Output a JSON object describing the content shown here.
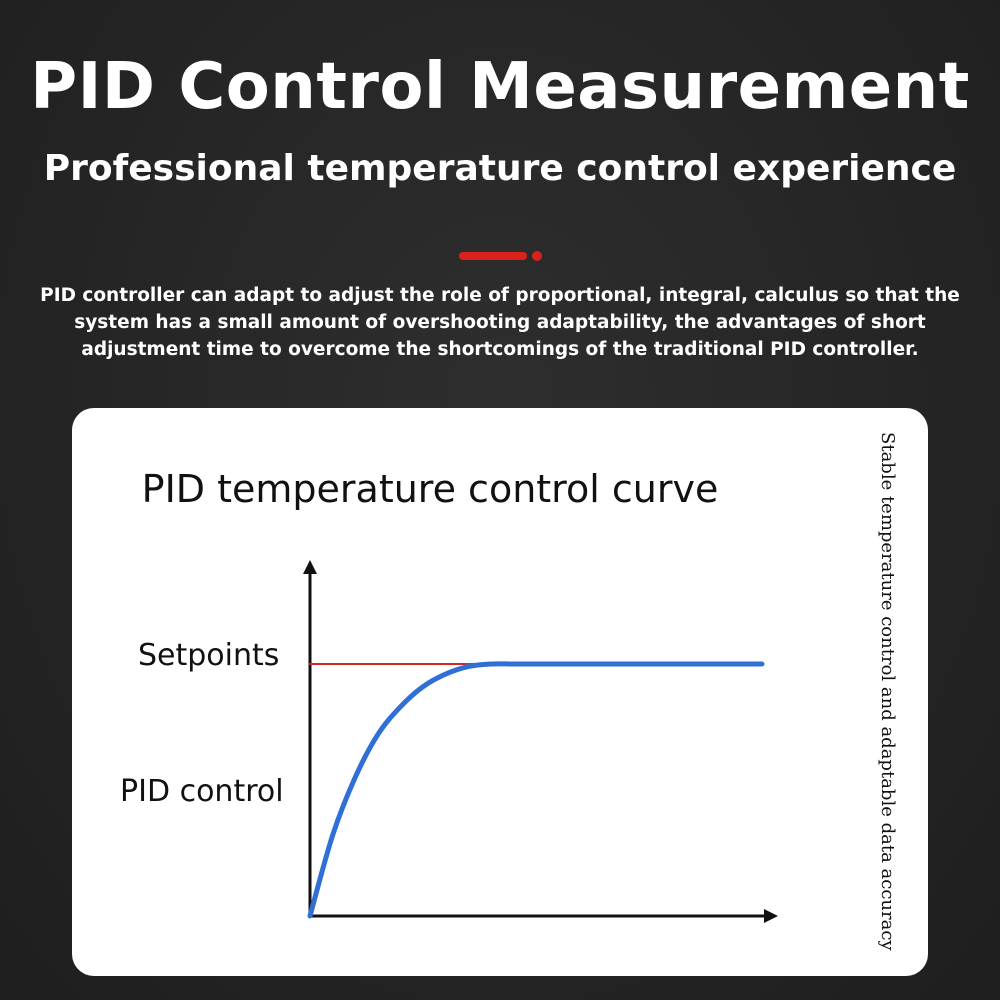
{
  "header": {
    "title": "PID Control Measurement",
    "subtitle": "Professional temperature control experience",
    "accent_color": "#d9221c"
  },
  "intro": {
    "text": "PID controller can adapt to adjust the role of proportional, integral, calculus so that the system has a small amount of overshooting adaptability, the advantages of short adjustment time to overcome the shortcomings of the traditional PID controller."
  },
  "card": {
    "chart_title": "PID temperature control curve",
    "side_caption": "Stable temperature control and adaptable data accuracy",
    "labels": {
      "setpoints": "Setpoints",
      "pid_control": "PID control"
    }
  },
  "chart_data": {
    "type": "line",
    "title": "PID temperature control curve",
    "xlabel": "",
    "ylabel": "",
    "grid": false,
    "setpoint_color": "#d42828",
    "pid_color": "#2f6fd6",
    "series": [
      {
        "name": "Setpoints",
        "color": "#d42828",
        "x": [
          0,
          1
        ],
        "y": [
          1,
          1
        ]
      },
      {
        "name": "PID control",
        "color": "#2f6fd6",
        "x": [
          0,
          0.05,
          0.1,
          0.15,
          0.2,
          0.25,
          0.3,
          0.35,
          0.4,
          0.45,
          0.5,
          1.0
        ],
        "y": [
          0,
          0.32,
          0.55,
          0.72,
          0.83,
          0.91,
          0.96,
          0.99,
          1.0,
          1.0,
          1.0,
          1.0
        ]
      }
    ]
  }
}
